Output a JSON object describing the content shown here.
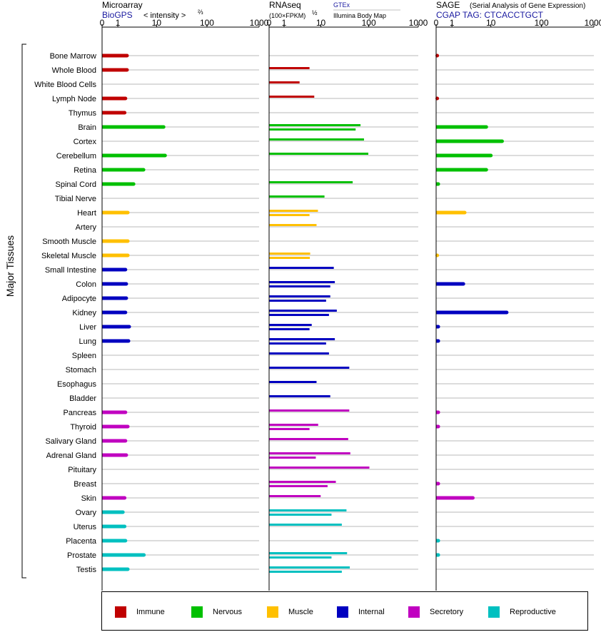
{
  "panels": [
    {
      "title": "Microarray",
      "subtitle": "BioGPS",
      "note": "< intensity >",
      "note_sup": "⅔",
      "note_extra": ""
    },
    {
      "title": "RNAseq",
      "subtitle": "(100×FPKM)",
      "sub_sup": "½",
      "note": "GTEx",
      "note_extra": "Illumina Body Map"
    },
    {
      "title": "SAGE",
      "subtitle": "CGAP TAG: CTCACCTGCT",
      "note": "(Serial Analysis of Gene Expression)",
      "note_extra": ""
    }
  ],
  "axis_label": "Major Tissues",
  "legend": [
    {
      "label": "Immune",
      "color": "#c00000"
    },
    {
      "label": "Nervous",
      "color": "#00c000"
    },
    {
      "label": "Muscle",
      "color": "#ffc000"
    },
    {
      "label": "Internal",
      "color": "#0000c0"
    },
    {
      "label": "Secretory",
      "color": "#c000c0"
    },
    {
      "label": "Reproductive",
      "color": "#00c0c0"
    }
  ],
  "chart_data": {
    "type": "bar",
    "scale": "log",
    "x_ticks": [
      "0",
      "1",
      "10",
      "100",
      "1000"
    ],
    "x_tick_values": [
      0,
      1,
      10,
      100,
      1000
    ],
    "xlim": [
      0,
      1000
    ],
    "categories": [
      "Bone Marrow",
      "Whole Blood",
      "White Blood Cells",
      "Lymph Node",
      "Thymus",
      "Brain",
      "Cortex",
      "Cerebellum",
      "Retina",
      "Spinal Cord",
      "Tibial Nerve",
      "Heart",
      "Artery",
      "Smooth Muscle",
      "Skeletal Muscle",
      "Small Intestine",
      "Colon",
      "Adipocyte",
      "Kidney",
      "Liver",
      "Lung",
      "Spleen",
      "Stomach",
      "Esophagus",
      "Bladder",
      "Pancreas",
      "Thyroid",
      "Salivary Gland",
      "Adrenal Gland",
      "Pituitary",
      "Breast",
      "Skin",
      "Ovary",
      "Uterus",
      "Placenta",
      "Prostate",
      "Testis"
    ],
    "groups": [
      "Immune",
      "Immune",
      "Immune",
      "Immune",
      "Immune",
      "Nervous",
      "Nervous",
      "Nervous",
      "Nervous",
      "Nervous",
      "Nervous",
      "Muscle",
      "Muscle",
      "Muscle",
      "Muscle",
      "Internal",
      "Internal",
      "Internal",
      "Internal",
      "Internal",
      "Internal",
      "Internal",
      "Internal",
      "Internal",
      "Internal",
      "Secretory",
      "Secretory",
      "Secretory",
      "Secretory",
      "Secretory",
      "Secretory",
      "Secretory",
      "Reproductive",
      "Reproductive",
      "Reproductive",
      "Reproductive",
      "Reproductive"
    ],
    "series": [
      {
        "values": [
          [
            2
          ],
          [
            2
          ],
          [],
          [
            1.8
          ],
          [
            1.7
          ],
          [
            14
          ],
          [],
          [
            15
          ],
          [
            5.2
          ],
          [
            3
          ],
          [],
          [
            2.1
          ],
          [],
          [
            2.1
          ],
          [
            2.1
          ],
          [
            1.8
          ],
          [
            1.9
          ],
          [
            1.9
          ],
          [
            1.8
          ],
          [
            2.3
          ],
          [
            2.2
          ],
          [],
          [],
          [],
          [],
          [
            1.8
          ],
          [
            2.1
          ],
          [
            1.8
          ],
          [
            1.9
          ],
          [],
          [],
          [
            1.7
          ],
          [
            1.5
          ],
          [
            1.7
          ],
          [
            1.8
          ],
          [
            5.3
          ],
          [
            2.1
          ]
        ]
      },
      {
        "values": [
          [],
          [
            5.5
          ],
          [
            3.1
          ],
          [
            7.1
          ],
          [],
          [
            68,
            54
          ],
          [
            80
          ],
          [
            98
          ],
          [],
          [
            47
          ],
          [
            12
          ],
          [
            8.6,
            5.5
          ],
          [
            8
          ],
          [],
          [
            5.7,
            5.6
          ],
          [
            19
          ],
          [
            20,
            16
          ],
          [
            16,
            13
          ],
          [
            22,
            15
          ],
          [
            6.2,
            5.5
          ],
          [
            20,
            13
          ],
          [
            15
          ],
          [
            40
          ],
          [
            8
          ],
          [
            16
          ],
          [
            40
          ],
          [
            8.7,
            5.5
          ],
          [
            38
          ],
          [
            42,
            7.7
          ],
          [
            103
          ],
          [
            21,
            14
          ],
          [
            9.9
          ],
          [
            35,
            17
          ],
          [
            28
          ],
          [],
          [
            36,
            17
          ],
          [
            41,
            28
          ]
        ]
      },
      {
        "values": [
          [
            0.05
          ],
          [],
          [],
          [
            0.05
          ],
          [],
          [
            8
          ],
          [
            17
          ],
          [
            10
          ],
          [
            8
          ],
          [
            0.1
          ],
          [],
          [
            2.5
          ],
          [],
          [],
          [
            0.05
          ],
          [],
          [
            2.3
          ],
          [],
          [
            21
          ],
          [
            0.1
          ],
          [
            0.1
          ],
          [],
          [],
          [],
          [],
          [
            0.1
          ],
          [
            0.1
          ],
          [],
          [],
          [],
          [
            0.1
          ],
          [
            4
          ],
          [],
          [],
          [
            0.1
          ],
          [
            0.1
          ],
          []
        ]
      }
    ]
  }
}
